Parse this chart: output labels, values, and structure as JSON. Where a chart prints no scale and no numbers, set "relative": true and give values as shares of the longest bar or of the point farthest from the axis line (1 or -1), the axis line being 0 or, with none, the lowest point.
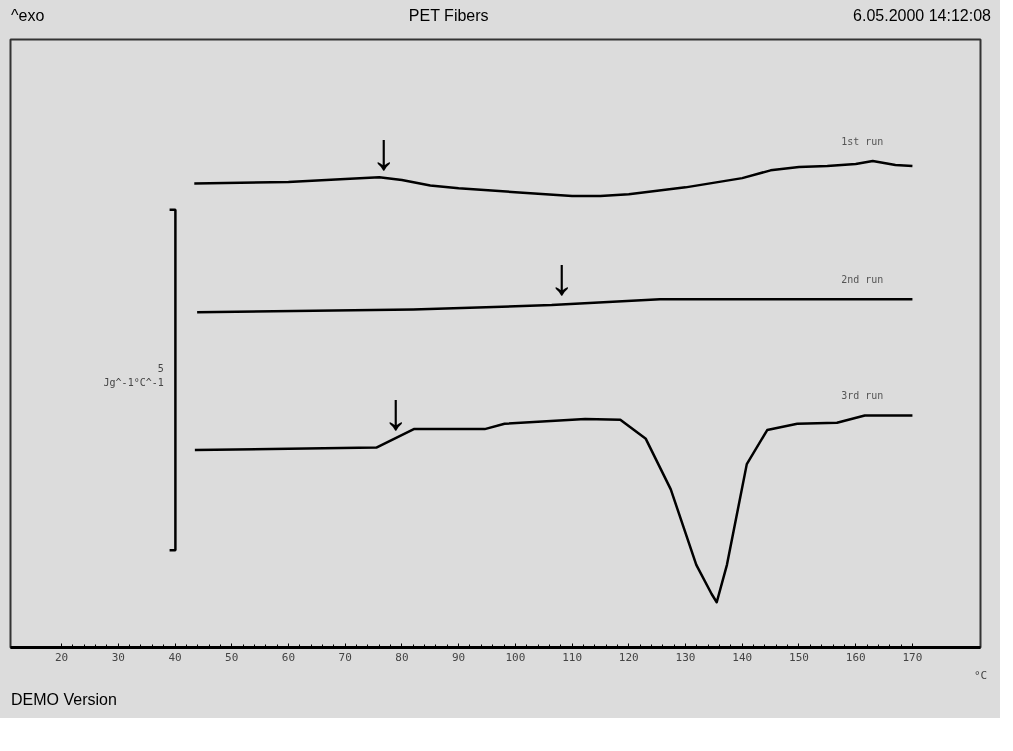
{
  "chart_data": {
    "type": "line",
    "title": "PET Fibers",
    "relative": true,
    "xlabel": "°C",
    "xlim": [
      11,
      182
    ],
    "xticks": [
      20,
      30,
      40,
      50,
      60,
      70,
      80,
      90,
      100,
      110,
      120,
      130,
      140,
      150,
      160,
      170
    ],
    "grid": false,
    "legend": false,
    "marker": "none",
    "line_style": "solid",
    "tick_labels": "x",
    "series": [
      {
        "name": "1st run",
        "color": "#000000",
        "x": [
          43.4,
          60,
          70,
          76,
          80,
          85,
          90,
          100,
          110,
          115,
          120,
          130,
          140,
          145,
          150,
          155,
          160,
          163,
          167,
          170
        ],
        "values": [
          0.954,
          0.957,
          0.963,
          0.967,
          0.961,
          0.95,
          0.944,
          0.936,
          0.928,
          0.928,
          0.932,
          0.946,
          0.965,
          0.981,
          0.988,
          0.99,
          0.994,
          1.0,
          0.992,
          0.99
        ]
      },
      {
        "name": "2nd run",
        "color": "#000000",
        "x": [
          43.9,
          82,
          106.4,
          125.5,
          166.7,
          170
        ],
        "values": [
          0.689,
          0.695,
          0.704,
          0.716,
          0.716,
          0.716
        ]
      },
      {
        "name": "3rd run",
        "color": "#000000",
        "x": [
          43.5,
          75.5,
          82.1,
          94.6,
          98.1,
          112.3,
          118.5,
          123.0,
          127.4,
          131.9,
          134.6,
          135.5,
          137.3,
          140.8,
          144.4,
          149.7,
          156.7,
          161.6,
          166.9,
          170
        ],
        "values": [
          0.406,
          0.411,
          0.449,
          0.449,
          0.46,
          0.47,
          0.468,
          0.429,
          0.325,
          0.17,
          0.11,
          0.093,
          0.17,
          0.377,
          0.447,
          0.46,
          0.462,
          0.477,
          0.477,
          0.477
        ]
      }
    ],
    "annotations": [
      "^exo",
      "6.05.2000 14:12:08",
      "DEMO Version",
      "5",
      "Jg^-1°C^-1",
      {
        "text": "↓",
        "x": 76.8,
        "y": 0.966
      },
      {
        "text": "↓",
        "x": 108.2,
        "y": 0.708
      },
      {
        "text": "↓",
        "x": 78.9,
        "y": 0.43
      }
    ]
  }
}
